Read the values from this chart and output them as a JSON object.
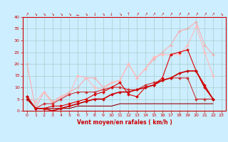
{
  "xlabel": "Vent moyen/en rafales ( km/h )",
  "background_color": "#cceeff",
  "grid_color": "#aacccc",
  "xlim": [
    -0.5,
    23.5
  ],
  "ylim": [
    0,
    40
  ],
  "yticks": [
    0,
    5,
    10,
    15,
    20,
    25,
    30,
    35,
    40
  ],
  "xticks": [
    0,
    1,
    2,
    3,
    4,
    5,
    6,
    7,
    8,
    9,
    10,
    11,
    12,
    13,
    14,
    15,
    16,
    17,
    18,
    19,
    20,
    21,
    22,
    23
  ],
  "series": [
    {
      "x": [
        0,
        1,
        2,
        3,
        4,
        5,
        6,
        7,
        8,
        9,
        10,
        11,
        12,
        13,
        14,
        15,
        16,
        17,
        18,
        19,
        20,
        21,
        22,
        23
      ],
      "y": [
        20,
        1,
        8,
        4,
        6,
        8,
        10,
        14,
        14,
        10,
        12,
        13,
        20,
        14,
        18,
        22,
        25,
        28,
        34,
        35,
        38,
        28,
        24,
        null
      ],
      "color": "#ffaaaa",
      "marker": "D",
      "markersize": 2.0,
      "linewidth": 0.8,
      "zorder": 1
    },
    {
      "x": [
        0,
        1,
        2,
        3,
        4,
        5,
        6,
        7,
        8,
        9,
        10,
        11,
        12,
        13,
        14,
        15,
        16,
        17,
        18,
        19,
        20,
        21,
        22,
        23
      ],
      "y": [
        6,
        4,
        8,
        3,
        6,
        7,
        15,
        14,
        10,
        9,
        12,
        13,
        20,
        14,
        18,
        23,
        24,
        24,
        24,
        28,
        36,
        25,
        15,
        null
      ],
      "color": "#ffbbbb",
      "marker": "D",
      "markersize": 2.0,
      "linewidth": 0.8,
      "zorder": 2
    },
    {
      "x": [
        0,
        1,
        2,
        3,
        4,
        5,
        6,
        7,
        8,
        9,
        10,
        11,
        12,
        13,
        14,
        15,
        16,
        17,
        18,
        19,
        20,
        21,
        22,
        23
      ],
      "y": [
        5,
        1,
        3,
        3,
        5,
        7,
        8,
        8,
        8,
        9,
        10,
        10,
        9,
        9,
        11,
        12,
        13,
        14,
        14,
        14,
        5,
        5,
        5,
        null
      ],
      "color": "#cc3333",
      "marker": "D",
      "markersize": 2.0,
      "linewidth": 0.8,
      "zorder": 3
    },
    {
      "x": [
        0,
        1,
        2,
        3,
        4,
        5,
        6,
        7,
        8,
        9,
        10,
        11,
        12,
        13,
        14,
        15,
        16,
        17,
        18,
        19,
        20,
        21,
        22,
        23
      ],
      "y": [
        6,
        1,
        1,
        2,
        2,
        3,
        4,
        5,
        7,
        8,
        10,
        12,
        7,
        6,
        10,
        11,
        14,
        24,
        25,
        26,
        17,
        11,
        5,
        null
      ],
      "color": "#dd0000",
      "marker": "D",
      "markersize": 2.0,
      "linewidth": 0.8,
      "zorder": 4
    },
    {
      "x": [
        0,
        1,
        2,
        3,
        4,
        5,
        6,
        7,
        8,
        9,
        10,
        11,
        12,
        13,
        14,
        15,
        16,
        17,
        18,
        19,
        20,
        21,
        22,
        23
      ],
      "y": [
        6,
        1,
        1,
        0,
        1,
        2,
        3,
        4,
        5,
        5,
        7,
        8,
        8,
        9,
        10,
        11,
        13,
        14,
        16,
        17,
        17,
        10,
        5,
        null
      ],
      "color": "#cc0000",
      "marker": "D",
      "markersize": 2.0,
      "linewidth": 1.2,
      "zorder": 5
    },
    {
      "x": [
        0,
        1,
        2,
        3,
        4,
        5,
        6,
        7,
        8,
        9,
        10,
        11,
        12,
        13,
        14,
        15,
        16,
        17,
        18,
        19,
        20,
        21,
        22,
        23
      ],
      "y": [
        5,
        1,
        1,
        1,
        1,
        1,
        2,
        2,
        2,
        2,
        2,
        3,
        3,
        3,
        3,
        3,
        3,
        3,
        3,
        3,
        3,
        3,
        3,
        null
      ],
      "color": "#990000",
      "marker": null,
      "markersize": 0,
      "linewidth": 0.8,
      "zorder": 3
    }
  ],
  "wind_symbols": [
    "↗",
    "↘",
    "↘",
    "↘",
    "↘",
    "↘",
    "←",
    "↘",
    "↓",
    "↘",
    "↓",
    "↘",
    "↑",
    "↗",
    "↗",
    "↗",
    "↗",
    "↗",
    "↗",
    "↗",
    "↗",
    "↗",
    "↗",
    "↘"
  ]
}
